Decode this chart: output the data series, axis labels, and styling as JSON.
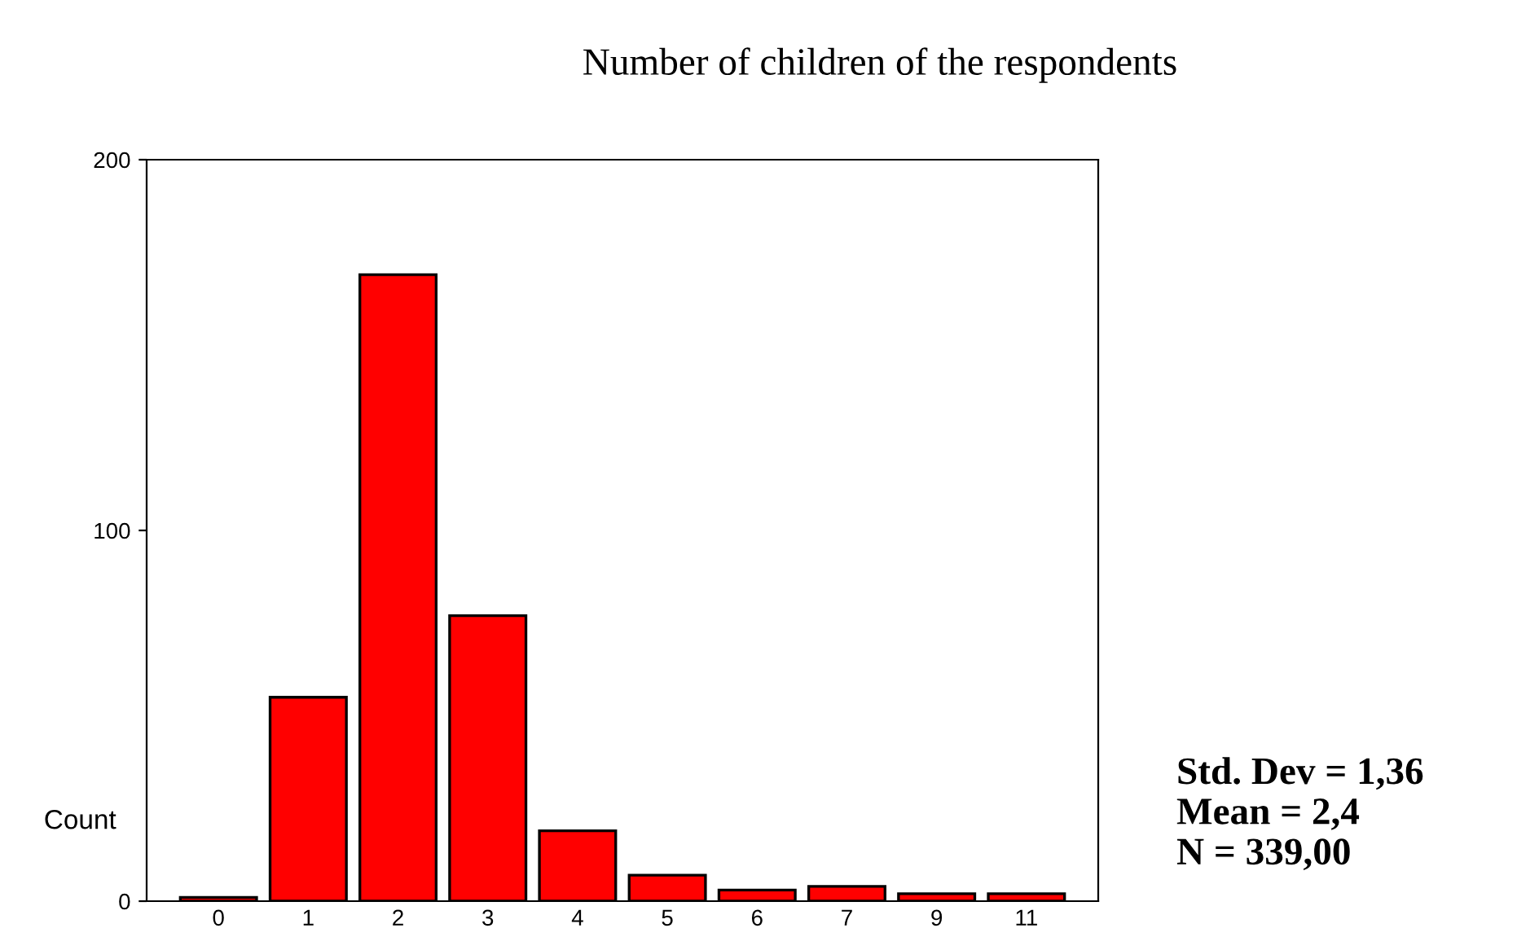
{
  "chart_data": {
    "type": "bar",
    "title": "Number of children of the respondents",
    "ylabel": "Count",
    "categories": [
      "0",
      "1",
      "2",
      "3",
      "4",
      "5",
      "6",
      "7",
      "9",
      "11"
    ],
    "values": [
      1,
      55,
      169,
      77,
      19,
      7,
      3,
      4,
      2,
      2
    ],
    "color": "#ff0000",
    "ylim": [
      0,
      200
    ],
    "yticks": [
      0,
      100,
      200
    ],
    "grid": false,
    "annotations": [
      "Std. Dev = 1,36\nMean = 2,4\nN = 339,00"
    ]
  }
}
